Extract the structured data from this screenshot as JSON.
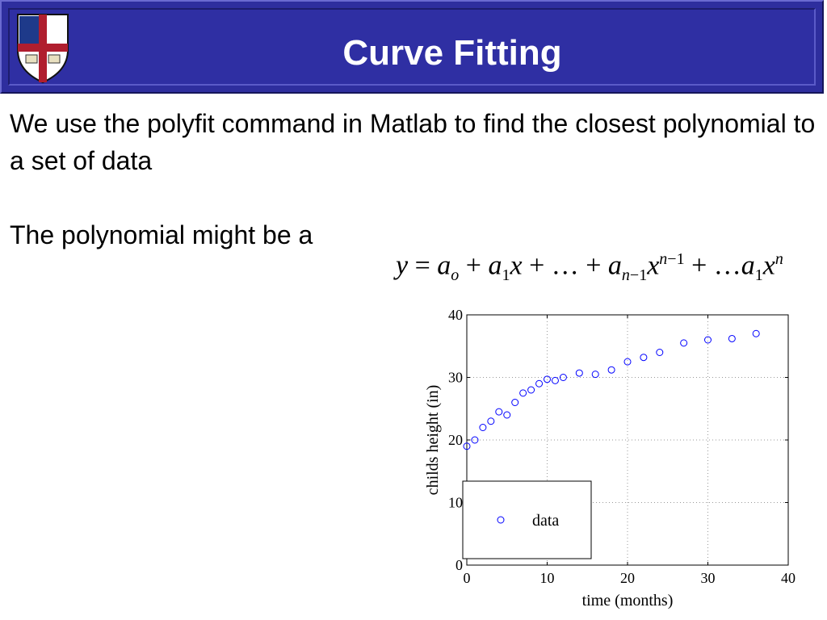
{
  "slide": {
    "title": "Curve Fitting",
    "paragraphs": [
      "We use the polyfit command in Matlab to find the closest polynomial to a set of data",
      "The polynomial might be a"
    ],
    "equation": "y = a_o + a_1 x + … + a_{n−1} x^{n−1} + …a_1 x^n",
    "logo_icon": "university-crest-icon",
    "colors": {
      "banner": "#2e2e9e",
      "title_text": "#ffffff",
      "marker": "#0000ff"
    }
  },
  "chart_data": {
    "type": "scatter",
    "title": "",
    "xlabel": "time (months)",
    "ylabel": "childs height (in)",
    "xlim": [
      0,
      40
    ],
    "ylim": [
      0,
      40
    ],
    "xticks": [
      0,
      10,
      20,
      30,
      40
    ],
    "yticks": [
      0,
      10,
      20,
      30,
      40
    ],
    "grid": true,
    "legend": {
      "position": "bottom-left",
      "entries": [
        "data"
      ]
    },
    "series": [
      {
        "name": "data",
        "marker": "circle",
        "color": "#0000ff",
        "x": [
          0,
          1,
          2,
          3,
          4,
          5,
          6,
          7,
          8,
          9,
          10,
          11,
          12,
          14,
          16,
          18,
          20,
          22,
          24,
          27,
          30,
          33,
          36
        ],
        "y": [
          19,
          20,
          22,
          23,
          24.5,
          24,
          26,
          27.5,
          28,
          29,
          29.7,
          29.5,
          30,
          30.7,
          30.5,
          31.2,
          32.5,
          33.2,
          34,
          35.5,
          36,
          36.2,
          37
        ]
      }
    ]
  }
}
